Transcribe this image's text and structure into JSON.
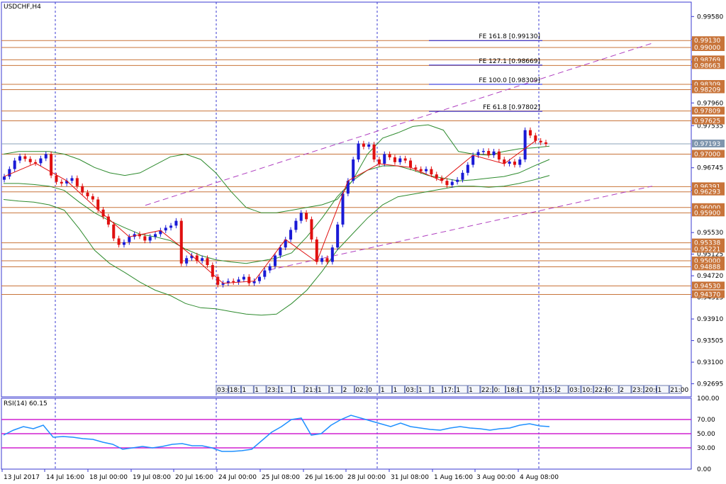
{
  "chart_data": {
    "type": "candlestick",
    "symbol_label": "USDCHF,H4",
    "price_axis": [
      "0.99580",
      "0.99155",
      "0.98730",
      "0.98305",
      "0.97960",
      "0.97535",
      "0.96745",
      "0.96320",
      "0.95530",
      "0.95125",
      "0.94720",
      "0.94315",
      "0.93910",
      "0.93505",
      "0.93100",
      "0.92695"
    ],
    "time_axis": [
      "13 Jul 2017",
      "14 Jul 16:00",
      "18 Jul 00:00",
      "19 Jul 08:00",
      "20 Jul 16:00",
      "24 Jul 00:00",
      "25 Jul 08:00",
      "26 Jul 16:00",
      "28 Jul 00:00",
      "31 Jul 08:00",
      "1 Aug 16:00",
      "3 Aug 00:00",
      "4 Aug 08:00"
    ],
    "ylim": [
      0.9245,
      0.9985
    ],
    "levels": [
      {
        "price": 0.9913,
        "label": "0.99130"
      },
      {
        "price": 0.99,
        "label": "0.99000"
      },
      {
        "price": 0.98769,
        "label": "0.98769"
      },
      {
        "price": 0.98663,
        "label": "0.98663"
      },
      {
        "price": 0.98309,
        "label": "0.98309"
      },
      {
        "price": 0.98209,
        "label": "0.98209"
      },
      {
        "price": 0.97809,
        "label": "0.97809"
      },
      {
        "price": 0.97625,
        "label": "0.97625"
      },
      {
        "price": 0.97,
        "label": "0.97000"
      },
      {
        "price": 0.96391,
        "label": "0.96391"
      },
      {
        "price": 0.96293,
        "label": "0.96293"
      },
      {
        "price": 0.96,
        "label": "0.96000"
      },
      {
        "price": 0.959,
        "label": "0.95900"
      },
      {
        "price": 0.95338,
        "label": "0.95338"
      },
      {
        "price": 0.95221,
        "label": "0.95221"
      },
      {
        "price": 0.95,
        "label": "0.95000"
      },
      {
        "price": 0.94888,
        "label": "0.94888"
      },
      {
        "price": 0.9453,
        "label": "0.94530"
      },
      {
        "price": 0.9437,
        "label": "0.94370"
      }
    ],
    "current_price": {
      "price": 0.97193,
      "label": "0.97193"
    },
    "fib_extensions": [
      {
        "label": "FE 161.8 [0.99130]",
        "price": 0.9913
      },
      {
        "label": "FE 127.1 [0.98669]",
        "price": 0.98669
      },
      {
        "label": "FE 100.0 [0.98309]",
        "price": 0.98309
      },
      {
        "label": "FE 61.8 [0.97802]",
        "price": 0.97802
      }
    ],
    "closes": [
      0.9658,
      0.9672,
      0.9688,
      0.9696,
      0.9691,
      0.9685,
      0.9683,
      0.9692,
      0.97,
      0.966,
      0.9648,
      0.9645,
      0.965,
      0.9655,
      0.964,
      0.9628,
      0.9621,
      0.9615,
      0.9596,
      0.9583,
      0.9568,
      0.9542,
      0.953,
      0.9535,
      0.9545,
      0.955,
      0.9546,
      0.9538,
      0.9545,
      0.955,
      0.9557,
      0.9562,
      0.9566,
      0.9575,
      0.9495,
      0.9505,
      0.951,
      0.95,
      0.9505,
      0.9492,
      0.947,
      0.9455,
      0.9458,
      0.9462,
      0.946,
      0.9465,
      0.947,
      0.9458,
      0.9462,
      0.947,
      0.9482,
      0.949,
      0.951,
      0.9525,
      0.954,
      0.9558,
      0.9575,
      0.959,
      0.9578,
      0.954,
      0.9498,
      0.9505,
      0.9498,
      0.9525,
      0.9568,
      0.9626,
      0.965,
      0.969,
      0.972,
      0.9714,
      0.9718,
      0.969,
      0.9682,
      0.97,
      0.9694,
      0.9685,
      0.9692,
      0.9688,
      0.9675,
      0.9672,
      0.9668,
      0.9672,
      0.9662,
      0.9655,
      0.965,
      0.9642,
      0.9648,
      0.9652,
      0.9665,
      0.968,
      0.9698,
      0.9704,
      0.9706,
      0.9698,
      0.9705,
      0.969,
      0.9682,
      0.9686,
      0.968,
      0.969,
      0.9745,
      0.9735,
      0.9725,
      0.9722,
      0.9719
    ],
    "bollinger": {
      "upper": [
        0.97,
        0.9705,
        0.9705,
        0.9705,
        0.97,
        0.969,
        0.9675,
        0.9665,
        0.966,
        0.9665,
        0.968,
        0.9695,
        0.97,
        0.969,
        0.9665,
        0.963,
        0.96,
        0.959,
        0.959,
        0.9595,
        0.96,
        0.9605,
        0.9615,
        0.965,
        0.97,
        0.973,
        0.974,
        0.9752,
        0.9755,
        0.9745,
        0.9705,
        0.97,
        0.9698,
        0.9705,
        0.971,
        0.9712,
        0.9715
      ],
      "middle": [
        0.9645,
        0.9645,
        0.9643,
        0.964,
        0.9632,
        0.961,
        0.959,
        0.9575,
        0.9562,
        0.955,
        0.9545,
        0.9538,
        0.9522,
        0.951,
        0.9502,
        0.9498,
        0.9495,
        0.95,
        0.9505,
        0.9515,
        0.9545,
        0.958,
        0.962,
        0.965,
        0.967,
        0.9678,
        0.9678,
        0.967,
        0.966,
        0.9655,
        0.965,
        0.9652,
        0.9655,
        0.9658,
        0.9665,
        0.9678,
        0.969
      ],
      "lower": [
        0.9615,
        0.9612,
        0.961,
        0.9605,
        0.9595,
        0.956,
        0.952,
        0.9495,
        0.9478,
        0.946,
        0.9445,
        0.9435,
        0.942,
        0.9412,
        0.941,
        0.9405,
        0.94,
        0.9398,
        0.94,
        0.942,
        0.9445,
        0.948,
        0.952,
        0.955,
        0.958,
        0.9605,
        0.962,
        0.9625,
        0.963,
        0.9635,
        0.964,
        0.964,
        0.9638,
        0.964,
        0.9645,
        0.9652,
        0.966
      ]
    },
    "time_tags": [
      "03:00",
      "18:30",
      "1",
      "1",
      "23:30",
      "1",
      "1",
      "21:00",
      "1",
      "1",
      "2",
      "02:",
      "0",
      "1",
      "1",
      "03:",
      "1",
      "1",
      "17:30",
      "1",
      "1",
      "22:30",
      "0:",
      "18:00",
      "1",
      "17:30",
      "15:",
      "2",
      "03:",
      "10:",
      "22:0",
      "0:",
      "2",
      "23:30",
      "20:00",
      "1",
      "21:00"
    ],
    "rsi": {
      "label": "RSI(14) 60.15",
      "axis": [
        "100.00",
        "70.00",
        "50.00",
        "30.00",
        "0.00"
      ],
      "levels": [
        70,
        50,
        30
      ],
      "values": [
        48,
        55,
        60,
        57,
        62,
        45,
        46,
        45,
        43,
        42,
        38,
        35,
        28,
        30,
        32,
        30,
        32,
        35,
        36,
        33,
        33,
        30,
        25,
        25,
        26,
        28,
        40,
        52,
        60,
        70,
        72,
        48,
        50,
        62,
        70,
        76,
        72,
        68,
        64,
        60,
        65,
        60,
        58,
        56,
        55,
        58,
        60,
        58,
        57,
        55,
        57,
        58,
        62,
        64,
        61,
        60
      ]
    },
    "colors": {
      "bull": "#1a1ad6",
      "bear": "#e01010",
      "level": "#c8743a",
      "bollinger": "#2e8b2e",
      "channel": "#b040c0",
      "fib_line": "#1a1ad6",
      "rsi_line": "#1e90ff",
      "rsi_level": "#d020d0",
      "axis": "#3a3ad0"
    }
  }
}
